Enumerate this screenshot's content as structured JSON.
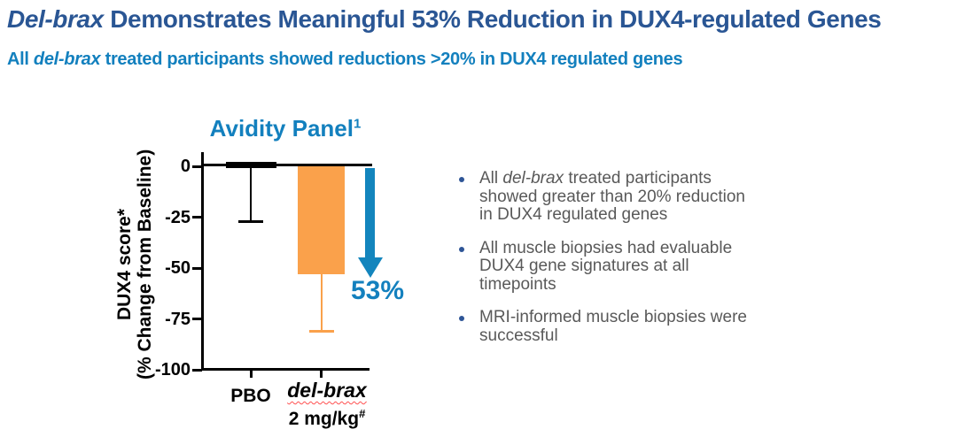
{
  "header": {
    "title_italic": "Del-brax",
    "title_rest": " Demonstrates Meaningful 53% Reduction in DUX4-regulated Genes",
    "subtitle_prefix": "All ",
    "subtitle_italic": "del-brax",
    "subtitle_rest": " treated participants showed reductions >20% in DUX4 regulated genes"
  },
  "chart_data": {
    "type": "bar",
    "title": "Avidity Panel",
    "title_superscript": "1",
    "ylabel_line1": "DUX4 score*",
    "ylabel_line2": "(% Change from Baseline)",
    "ylim": [
      -100,
      5
    ],
    "yticks": [
      0,
      -25,
      -50,
      -75,
      -100
    ],
    "grid": "off",
    "categories": [
      "PBO",
      "del-brax 2 mg/kg#"
    ],
    "bars": [
      {
        "label": "PBO",
        "value": 2,
        "error_to": -27,
        "color": "#000000",
        "error_color": "#000000"
      },
      {
        "label": "del-brax 2 mg/kg#",
        "value": -53,
        "error_to": -81,
        "color": "#FAA14B",
        "error_color": "#FAA14B"
      }
    ],
    "annotation": {
      "shape": "down-arrow",
      "label": "53%",
      "color": "#1380BE"
    },
    "x_labels": {
      "pbo": "PBO",
      "delbrax_line1": "del-brax",
      "delbrax_line2": "2 mg/kg",
      "delbrax_superscript": "#"
    }
  },
  "bullets": [
    {
      "prefix": "All ",
      "italic": "del-brax",
      "rest": " treated participants\nshowed greater than 20% reduction\nin DUX4 regulated genes"
    },
    {
      "text": "All muscle biopsies had evaluable\nDUX4 gene signatures at all\ntimepoints"
    },
    {
      "text": "MRI-informed muscle biopsies were\nsuccessful"
    }
  ],
  "colors": {
    "title_navy": "#2A5694",
    "teal": "#1380BE",
    "orange": "#FAA14B",
    "arrow_teal": "#1385BD",
    "body_gray": "#595959",
    "bullet_dot": "#2E5596"
  }
}
